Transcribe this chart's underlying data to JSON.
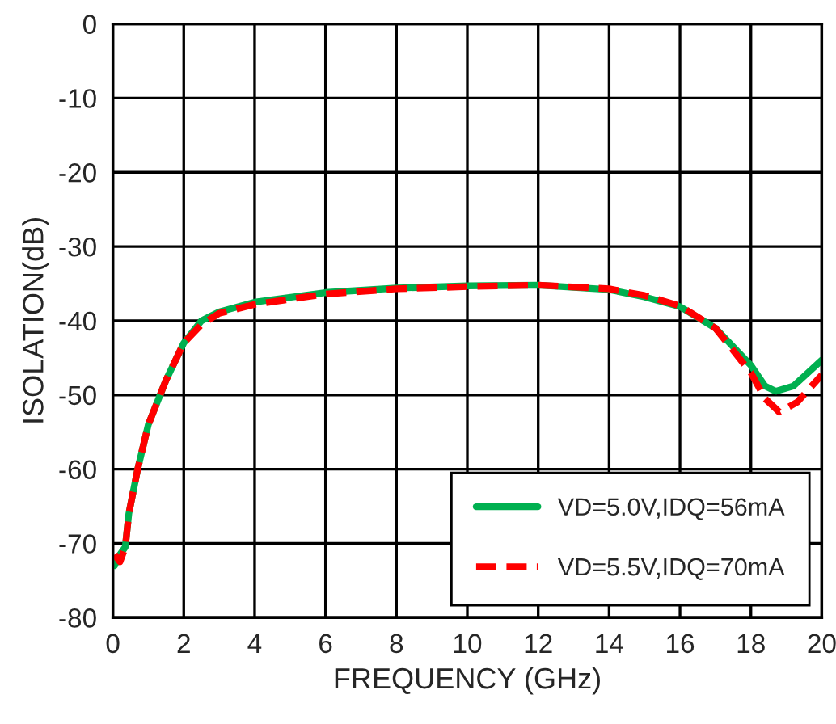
{
  "chart_data": {
    "type": "line",
    "xlabel": "FREQUENCY (GHz)",
    "ylabel": "ISOLATION(dB)",
    "xlim": [
      0,
      20
    ],
    "xticks": [
      0,
      2,
      4,
      6,
      8,
      10,
      12,
      14,
      16,
      18,
      20
    ],
    "ylim": [
      -80,
      0
    ],
    "yticks": [
      -80,
      -70,
      -60,
      -50,
      -40,
      -30,
      -20,
      -10,
      0
    ],
    "grid": true,
    "legend": "bottom right",
    "series": [
      {
        "name": "VD=5.0V,IDQ=56mA",
        "color": "#00b050",
        "line_style": "solid",
        "x": [
          0.05,
          0.2,
          0.35,
          0.45,
          0.7,
          1,
          1.5,
          2,
          2.5,
          3,
          4,
          6,
          8,
          10,
          12,
          14,
          15,
          16,
          17,
          18,
          18.4,
          18.7,
          19.2,
          20
        ],
        "values": [
          -73,
          -71.5,
          -70.5,
          -66,
          -60,
          -54,
          -48,
          -43,
          -40,
          -38.8,
          -37.5,
          -36.2,
          -35.6,
          -35.3,
          -35.2,
          -35.8,
          -36.8,
          -38.1,
          -41,
          -46,
          -48.8,
          -49.5,
          -48.8,
          -45.3
        ]
      },
      {
        "name": "VD=5.5V,IDQ=70mA",
        "color": "#ff0000",
        "line_style": "dashed",
        "x": [
          0.05,
          0.2,
          0.35,
          0.45,
          0.7,
          1,
          1.5,
          2,
          2.5,
          3,
          4,
          6,
          8,
          10,
          12,
          14,
          15,
          16,
          17,
          18,
          18.4,
          18.8,
          19.3,
          20
        ],
        "values": [
          -71.5,
          -72.5,
          -70.5,
          -66,
          -60,
          -54,
          -48,
          -43,
          -40.5,
          -39,
          -37.8,
          -36.4,
          -35.7,
          -35.4,
          -35.2,
          -35.7,
          -36.6,
          -38,
          -41,
          -47,
          -50.5,
          -52.3,
          -51,
          -47.3
        ]
      }
    ]
  }
}
